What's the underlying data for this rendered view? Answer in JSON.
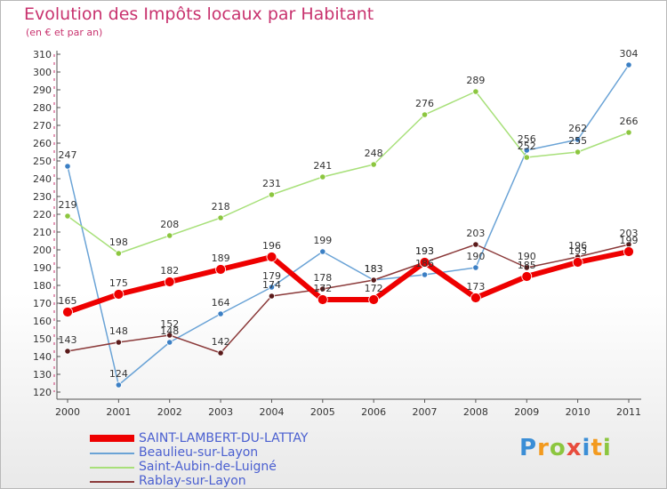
{
  "header": {
    "title": "Evolution des Impôts locaux par Habitant",
    "subtitle": "(en € et par an)"
  },
  "logo": {
    "text": "Proxiti",
    "letters": [
      "P",
      "r",
      "o",
      "x",
      "i",
      "t",
      "i"
    ]
  },
  "chart_data": {
    "type": "line",
    "title": "Evolution des Impôts locaux par Habitant",
    "subtitle": "(en € et par an)",
    "x": [
      "2000",
      "2001",
      "2002",
      "2003",
      "2004",
      "2005",
      "2006",
      "2007",
      "2008",
      "2009",
      "2010",
      "2011"
    ],
    "ylim": [
      120,
      310
    ],
    "yticks": [
      120,
      130,
      140,
      150,
      160,
      170,
      180,
      190,
      200,
      210,
      220,
      230,
      240,
      250,
      260,
      270,
      280,
      290,
      300,
      310
    ],
    "grid": false,
    "legend_position": "bottom-left",
    "series": [
      {
        "name": "SAINT-LAMBERT-DU-LATTAY",
        "color": "#ee0000",
        "marker": "#ee0000",
        "width": 6,
        "values": [
          165,
          175,
          182,
          189,
          196,
          172,
          172,
          193,
          173,
          185,
          193,
          199
        ]
      },
      {
        "name": "Beaulieu-sur-Layon",
        "color": "#6aa3d6",
        "marker": "#3b7fc4",
        "width": 1.5,
        "values": [
          247,
          124,
          148,
          164,
          179,
          199,
          183,
          186,
          190,
          256,
          262,
          304
        ]
      },
      {
        "name": "Saint-Aubin-de-Luigné",
        "color": "#a8e07a",
        "marker": "#8cc63f",
        "width": 1.5,
        "values": [
          219,
          198,
          208,
          218,
          231,
          241,
          248,
          276,
          289,
          252,
          255,
          266
        ]
      },
      {
        "name": "Rablay-sur-Layon",
        "color": "#8b3a3a",
        "marker": "#5a1a1a",
        "width": 1.5,
        "values": [
          143,
          148,
          152,
          142,
          174,
          178,
          183,
          193,
          203,
          190,
          196,
          203
        ]
      }
    ]
  }
}
